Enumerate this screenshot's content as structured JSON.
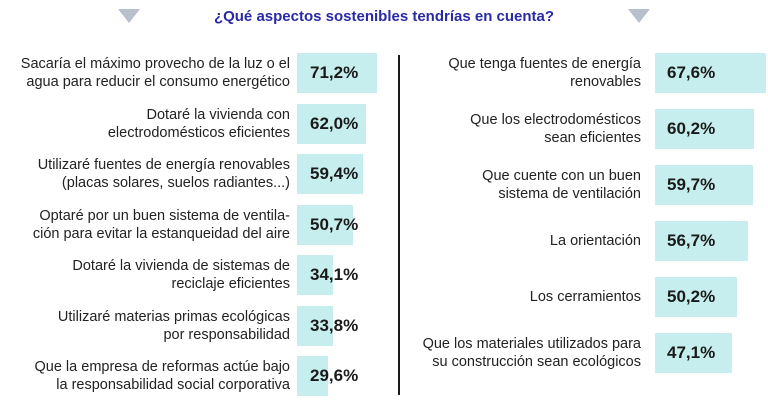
{
  "title": "¿Qué aspectos sostenibles tendrías en cuenta?",
  "colors": {
    "title": "#2a2aa6",
    "bar": "#c6eeee",
    "arrows": "#b8c0cc",
    "divider": "#1a1a1a"
  },
  "chart_data": [
    {
      "type": "bar",
      "orientation": "horizontal",
      "categories": [
        "Sacaría el máximo provecho de la luz o el agua para reducir el consumo energético",
        "Dotaré la vivienda con electrodomésticos eficientes",
        "Utilizaré fuentes de energía renovables (placas solares, suelos radiantes...)",
        "Optaré por un buen sistema de ventilación para evitar la estanqueidad del aire",
        "Dotaré la vivienda de sistemas de reciclaje eficientes",
        "Utilizaré materias primas ecológicas por responsabilidad",
        "Que la empresa de reformas actúe bajo la responsabilidad social corporativa"
      ],
      "label_lines": [
        [
          "Sacaría el máximo provecho de la luz o el",
          "agua para reducir el consumo energético"
        ],
        [
          "Dotaré la vivienda con",
          "electrodomésticos eficientes"
        ],
        [
          "Utilizaré fuentes de energía renovables",
          "(placas solares, suelos radiantes...)"
        ],
        [
          "Optaré por un buen sistema de ventila-",
          "ción para evitar la estanqueidad del aire"
        ],
        [
          "Dotaré la vivienda de sistemas de",
          "reciclaje eficientes"
        ],
        [
          "Utilizaré materias primas ecológicas",
          "por responsabilidad"
        ],
        [
          "Que la empresa de reformas actúe bajo",
          "la responsabilidad social corporativa"
        ]
      ],
      "values": [
        71.2,
        62.0,
        59.4,
        50.7,
        34.1,
        33.8,
        29.6
      ],
      "value_labels": [
        "71,2%",
        "62,0%",
        "59,4%",
        "50,7%",
        "34,1%",
        "33,8%",
        "29,6%"
      ]
    },
    {
      "type": "bar",
      "orientation": "horizontal",
      "categories": [
        "Que tenga fuentes de energía renovables",
        "Que los electrodomésticos sean eficientes",
        "Que cuente con un buen sistema de ventilación",
        "La orientación",
        "Los cerramientos",
        "Que los materiales utilizados para su construcción sean ecológicos"
      ],
      "label_lines": [
        [
          "Que tenga fuentes de energía",
          "renovables"
        ],
        [
          "Que los electrodomésticos",
          "sean eficientes"
        ],
        [
          "Que cuente con un buen",
          "sistema de ventilación"
        ],
        [
          "La orientación"
        ],
        [
          "Los cerramientos"
        ],
        [
          "Que los materiales utilizados para",
          "su construcción sean ecológicos"
        ]
      ],
      "values": [
        67.6,
        60.2,
        59.7,
        56.7,
        50.2,
        47.1
      ],
      "value_labels": [
        "67,6%",
        "60,2%",
        "59,7%",
        "56,7%",
        "50,2%",
        "47,1%"
      ]
    }
  ]
}
